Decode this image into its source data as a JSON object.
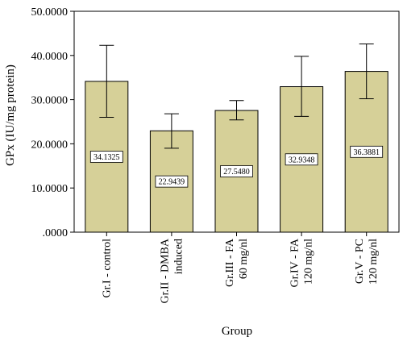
{
  "chart_data": {
    "type": "bar",
    "title": "",
    "xlabel": "Group",
    "ylabel": "GPx (IU/mg protein)",
    "ylim": [
      0,
      50
    ],
    "yticks": [
      ".0000",
      "10.0000",
      "20.0000",
      "30.0000",
      "40.0000",
      "50.0000"
    ],
    "categories": [
      [
        "Gr.I - control"
      ],
      [
        "Gr.II - DMBA",
        "induced"
      ],
      [
        "Gr.III - FA",
        "60 mg/nl"
      ],
      [
        "Gr.IV - FA",
        "120 mg/nl"
      ],
      [
        "Gr.V - PC",
        "120 mg/nl"
      ]
    ],
    "values": [
      34.1325,
      22.9439,
      27.548,
      32.9348,
      36.3881
    ],
    "value_labels": [
      "34.1325",
      "22.9439",
      "27.5480",
      "32.9348",
      "36.3881"
    ],
    "error_low": [
      26.0,
      19.0,
      25.4,
      26.2,
      30.2
    ],
    "error_high": [
      42.3,
      26.8,
      29.8,
      39.8,
      42.6
    ],
    "bar_color": "#d6d098",
    "bar_stroke": "#000000",
    "grid": false,
    "legend": "none"
  }
}
